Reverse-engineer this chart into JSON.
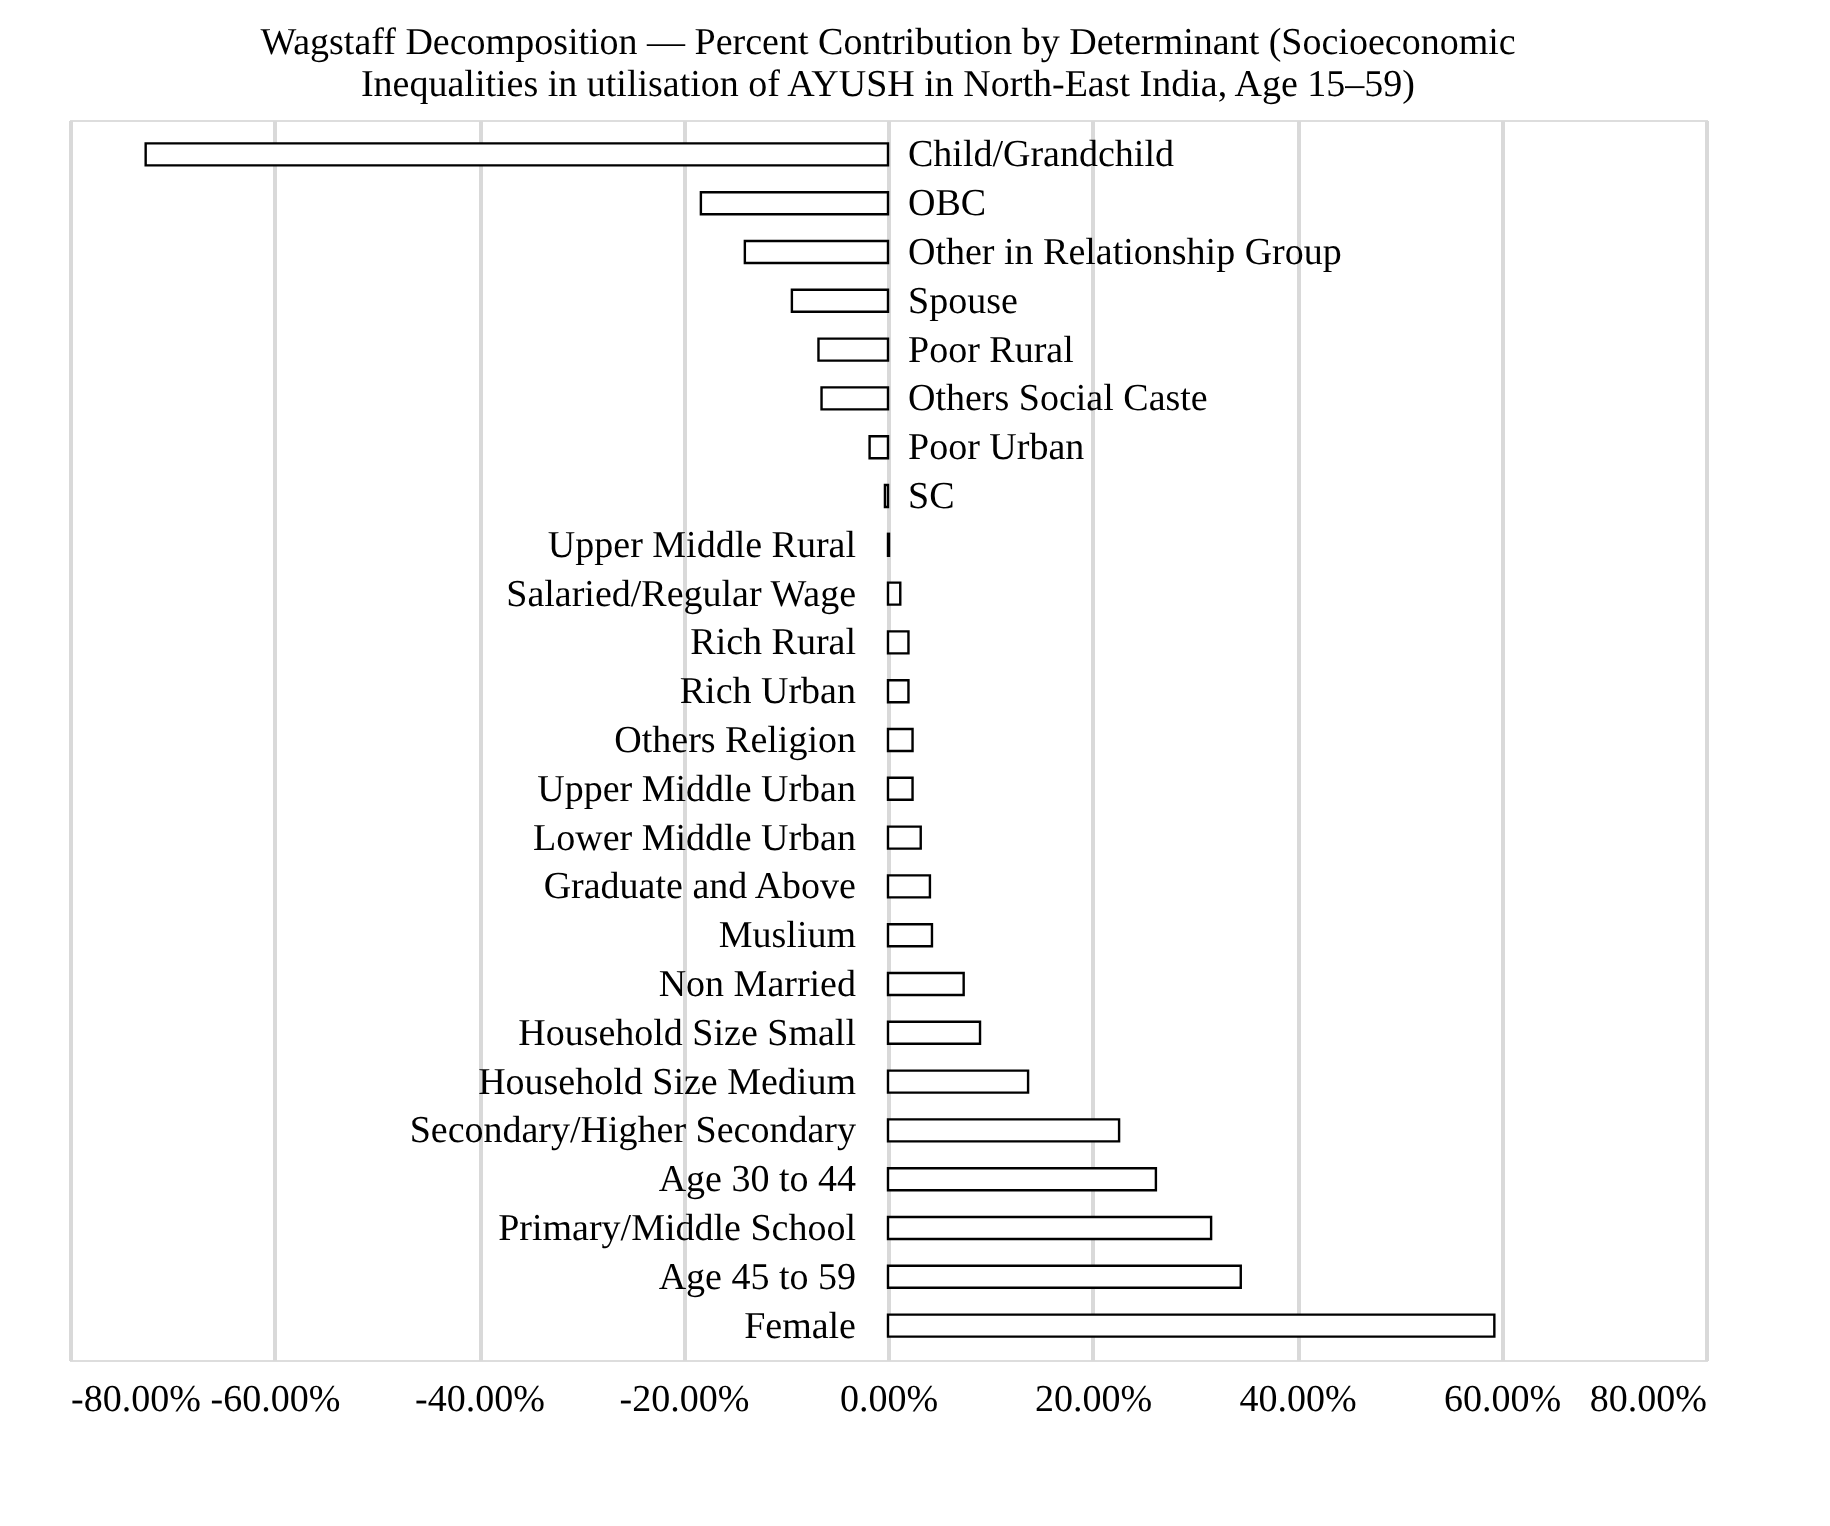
{
  "chart_data": {
    "type": "bar",
    "orientation": "horizontal",
    "title": [
      "Wagstaff Decomposition — Percent Contribution by Determinant (Socioeconomic",
      "Inequalities in utilisation of AYUSH in North-East India, Age 15–59)"
    ],
    "categories": [
      "Child/Grandchild",
      "OBC",
      "Other in Relationship Group",
      "Spouse",
      "Poor Rural",
      "Others Social Caste",
      "Poor Urban",
      "SC",
      "Upper Middle Rural",
      "Salaried/Regular Wage",
      "Rich Rural",
      "Rich Urban",
      "Others Religion",
      "Upper Middle Urban",
      "Lower Middle Urban",
      "Graduate and Above",
      "Muslium",
      "Non Married",
      "Household Size Small",
      "Household Size Medium",
      "Secondary/Higher Secondary",
      "Age 30 to 44",
      "Primary/Middle School",
      "Age 45 to 59",
      "Female"
    ],
    "values": [
      -72.6,
      -18.3,
      -14.0,
      -9.4,
      -6.8,
      -6.5,
      -1.8,
      -0.3,
      0.1,
      1.2,
      2.0,
      2.0,
      2.4,
      2.4,
      3.2,
      4.1,
      4.3,
      7.4,
      9.0,
      13.7,
      22.6,
      26.2,
      31.6,
      34.5,
      59.3
    ],
    "color": "#ffffff",
    "xlim": [
      -80,
      80
    ],
    "xticks": [
      {
        "value": -80,
        "label": "-80.00%"
      },
      {
        "value": -60,
        "label": "-60.00%"
      },
      {
        "value": -40,
        "label": "-40.00%"
      },
      {
        "value": -20,
        "label": "-20.00%"
      },
      {
        "value": 0,
        "label": "0.00%"
      },
      {
        "value": 20,
        "label": "20.00%"
      },
      {
        "value": 40,
        "label": "40.00%"
      },
      {
        "value": 60,
        "label": "60.00%"
      },
      {
        "value": 80,
        "label": "80.00%"
      }
    ],
    "grid": "x"
  }
}
